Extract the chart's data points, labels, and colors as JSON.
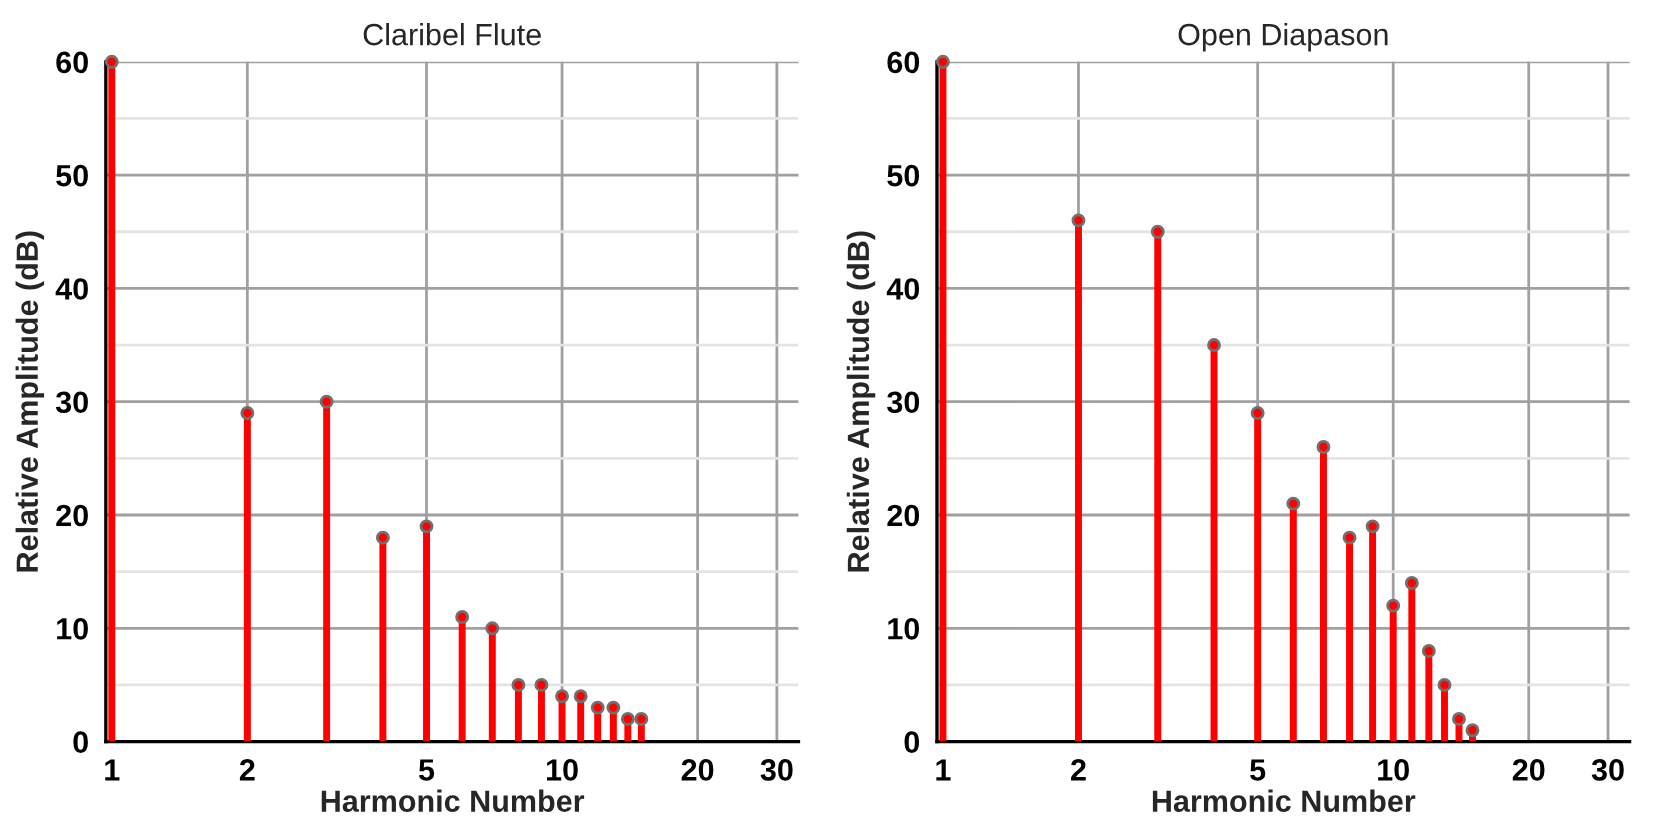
{
  "chart_data": [
    {
      "type": "lollipop",
      "title": "Claribel Flute",
      "xlabel": "Harmonic Number",
      "ylabel": "Relative Amplitude (dB)",
      "log": "x",
      "x": [
        1,
        2,
        3,
        4,
        5,
        6,
        7,
        8,
        9,
        10,
        11,
        12,
        13,
        14,
        15
      ],
      "series": [
        {
          "color": "#ff0000",
          "values": [
            60,
            29,
            30,
            18,
            19,
            11,
            10,
            5,
            5,
            4,
            4,
            3,
            3,
            2,
            2
          ]
        }
      ],
      "marker": "circle",
      "grid": true,
      "xlim": [
        0.97,
        33.5
      ],
      "xticks": [
        1,
        2,
        5,
        10,
        20,
        30
      ],
      "ylim": [
        0,
        60
      ],
      "yticks": [
        0,
        {
          "value": 5,
          "label": null
        },
        10,
        {
          "value": 15,
          "label": null
        },
        20,
        {
          "value": 25,
          "label": null
        },
        30,
        {
          "value": 35,
          "label": null
        },
        40,
        {
          "value": 45,
          "label": null
        },
        50,
        {
          "value": 55,
          "label": null
        },
        60
      ]
    },
    {
      "type": "lollipop",
      "title": "Open Diapason",
      "xlabel": "Harmonic Number",
      "ylabel": "Relative Amplitude (dB)",
      "log": "x",
      "x": [
        1,
        2,
        3,
        4,
        5,
        6,
        7,
        8,
        9,
        10,
        11,
        12,
        13,
        14,
        15
      ],
      "series": [
        {
          "color": "#ff0000",
          "values": [
            60,
            46,
            45,
            35,
            29,
            21,
            26,
            18,
            19,
            12,
            14,
            8,
            5,
            2,
            1
          ]
        }
      ],
      "marker": "circle",
      "grid": true,
      "xlim": [
        0.97,
        33.5
      ],
      "xticks": [
        1,
        2,
        5,
        10,
        20,
        30
      ],
      "ylim": [
        0,
        60
      ],
      "yticks": [
        0,
        {
          "value": 5,
          "label": null
        },
        10,
        {
          "value": 15,
          "label": null
        },
        20,
        {
          "value": 25,
          "label": null
        },
        30,
        {
          "value": 35,
          "label": null
        },
        40,
        {
          "value": 45,
          "label": null
        },
        50,
        {
          "value": 55,
          "label": null
        },
        60
      ]
    }
  ]
}
